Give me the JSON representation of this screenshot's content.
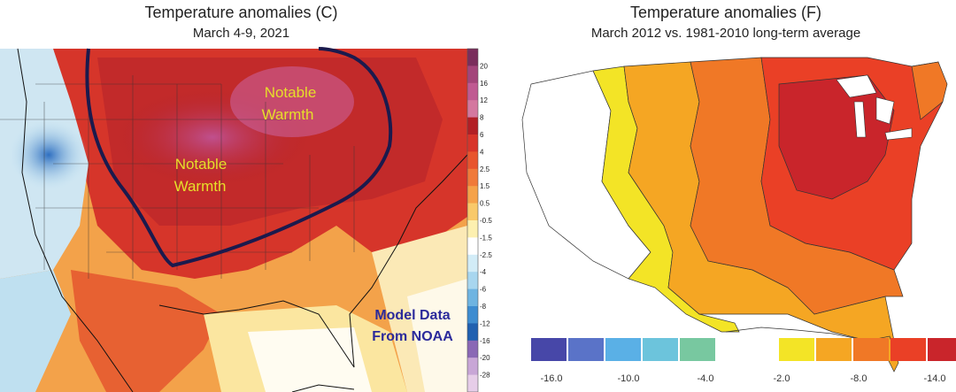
{
  "left": {
    "title": "Temperature anomalies (C)",
    "subtitle": "March 4-9, 2021",
    "annotations": [
      "Notable",
      "Warmth",
      "Notable",
      "Warmth"
    ],
    "source_note": [
      "Model Data",
      "From NOAA"
    ],
    "colorbar_labels": [
      "20",
      "16",
      "12",
      "8",
      "6",
      "4",
      "2.5",
      "1.5",
      "0.5",
      "-0.5",
      "-1.5",
      "-2.5",
      "-4",
      "-6",
      "-8",
      "-12",
      "-16",
      "-20",
      "-28"
    ],
    "colorbar_colors": [
      "#7a2e5c",
      "#a3457a",
      "#c05a92",
      "#d4789f",
      "#b21f25",
      "#d8342a",
      "#e8552e",
      "#f07a3a",
      "#f5a24a",
      "#f9c96a",
      "#fdf0b0",
      "#ffffff",
      "#d2ecf7",
      "#a8d6ef",
      "#6fb4e1",
      "#3e8cd0",
      "#2060b0",
      "#8a68b5",
      "#c8a6d6",
      "#e6cde8"
    ]
  },
  "right": {
    "title": "Temperature anomalies (F)",
    "subtitle": "March 2012 vs. 1981-2010 long-term average",
    "legend_labels": [
      "-16.0",
      "-10.0",
      "-4.0",
      "-2.0",
      "-8.0",
      "-14.0"
    ],
    "legend_colors": [
      "#4747a8",
      "#5a73c8",
      "#5ab0e6",
      "#6cc4dc",
      "#78c8a0",
      "#f3e426",
      "#f5a623",
      "#f07826",
      "#ea4026",
      "#c9252b"
    ]
  },
  "colors": {
    "contour": "#1b1a4d",
    "annotation_text": "#e6df2a",
    "source_text": "#2b2a9b"
  }
}
